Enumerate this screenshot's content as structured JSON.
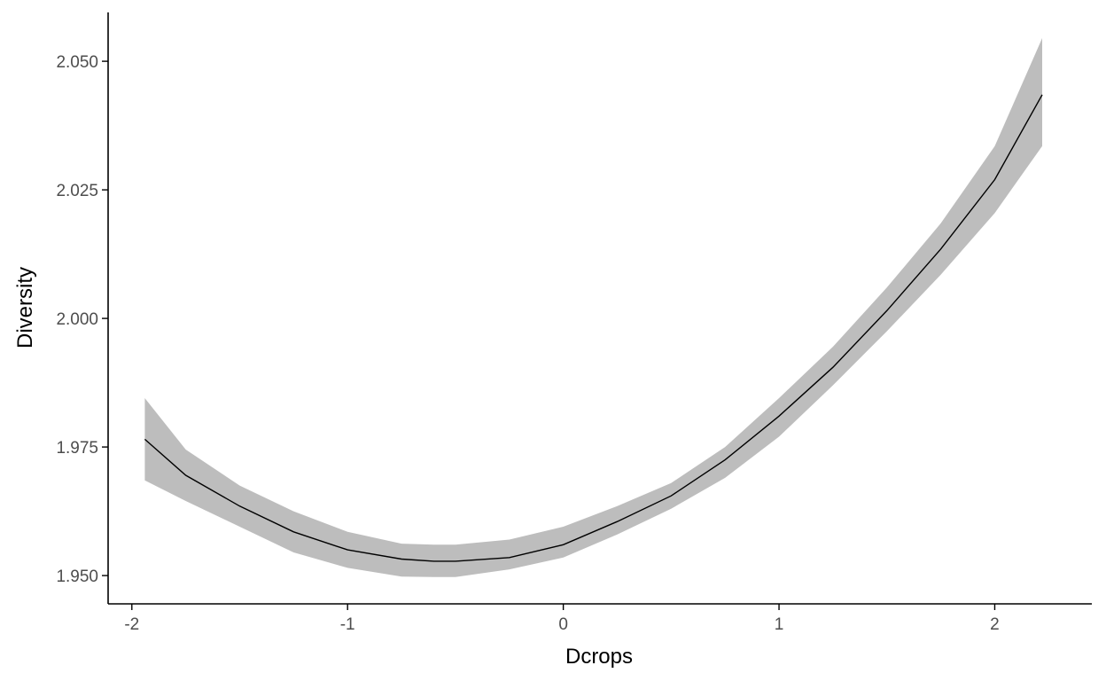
{
  "chart_data": {
    "type": "line",
    "title": "",
    "xlabel": "Dcrops",
    "ylabel": "Diversity",
    "xlim": [
      -2.11,
      2.45
    ],
    "ylim": [
      1.9445,
      2.0595
    ],
    "x_ticks": [
      -2,
      -1,
      0,
      1,
      2
    ],
    "x_tick_labels": [
      "-2",
      "-1",
      "0",
      "1",
      "2"
    ],
    "y_ticks": [
      1.95,
      1.975,
      2.0,
      2.025,
      2.05
    ],
    "y_tick_labels": [
      "1.950",
      "1.975",
      "2.000",
      "2.025",
      "2.050"
    ],
    "grid": false,
    "legend": "none",
    "series": [
      {
        "x": [
          -1.94,
          -1.75,
          -1.5,
          -1.25,
          -1.0,
          -0.75,
          -0.6,
          -0.5,
          -0.25,
          0.0,
          0.25,
          0.5,
          0.75,
          1.0,
          1.25,
          1.5,
          1.75,
          2.0,
          2.22
        ],
        "y": [
          1.9765,
          1.9695,
          1.9635,
          1.9585,
          1.955,
          1.9532,
          1.9528,
          1.9528,
          1.9535,
          1.956,
          1.9605,
          1.9655,
          1.9725,
          1.981,
          1.9905,
          2.0015,
          2.0135,
          2.027,
          2.0435
        ],
        "lower": [
          1.9685,
          1.9645,
          1.9595,
          1.9545,
          1.9515,
          1.9498,
          1.9497,
          1.9497,
          1.9512,
          1.9535,
          1.958,
          1.963,
          1.969,
          1.977,
          1.987,
          1.9975,
          2.0085,
          2.0205,
          2.0335
        ],
        "upper": [
          1.9845,
          1.9745,
          1.9675,
          1.9625,
          1.9585,
          1.9562,
          1.956,
          1.956,
          1.957,
          1.9595,
          1.9635,
          1.968,
          1.975,
          1.9845,
          1.9945,
          2.006,
          2.0185,
          2.0335,
          2.0545
        ]
      }
    ],
    "colors": {
      "band": "#bdbdbd",
      "line": "#000000",
      "axis": "#000000",
      "tick_label": "#4d4d4d"
    }
  }
}
